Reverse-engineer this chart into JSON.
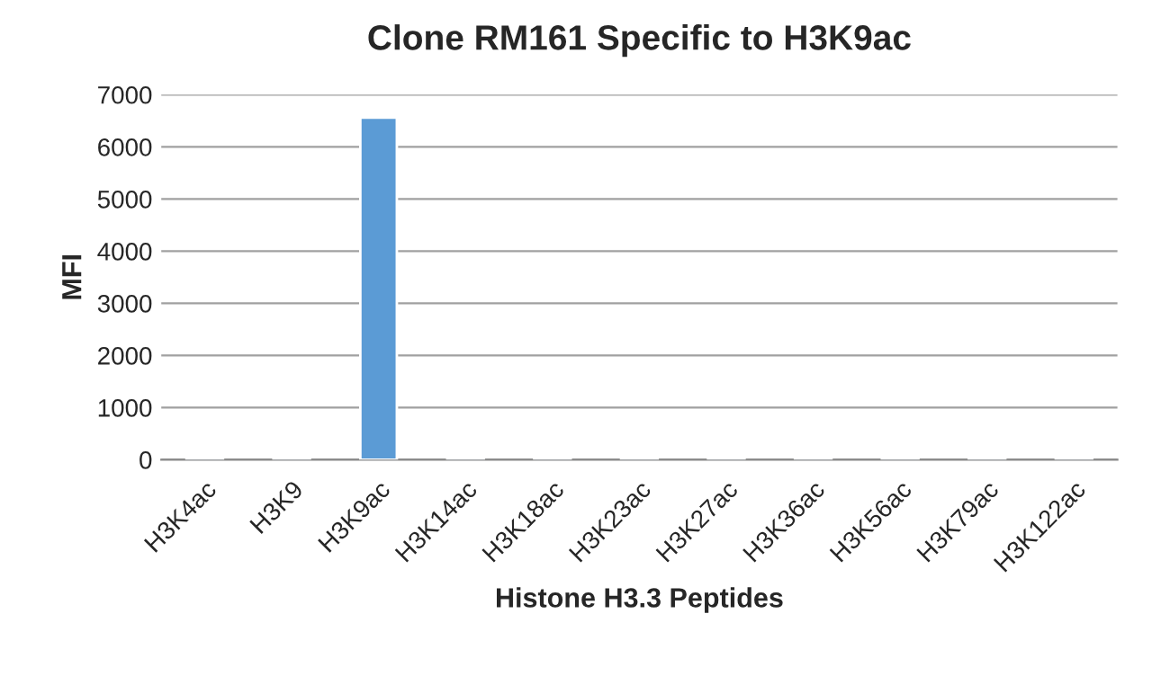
{
  "chart_data": {
    "type": "bar",
    "title": "Clone RM161 Specific to H3K9ac",
    "xlabel": "Histone H3.3 Peptides",
    "ylabel": "MFI",
    "categories": [
      "H3K4ac",
      "H3K9",
      "H3K9ac",
      "H3K14ac",
      "H3K18ac",
      "H3K23ac",
      "H3K27ac",
      "H3K36ac",
      "H3K56ac",
      "H3K79ac",
      "H3K122ac"
    ],
    "values": [
      40,
      40,
      6560,
      40,
      40,
      40,
      40,
      40,
      40,
      40,
      40
    ],
    "color": "#5b9bd5",
    "ylim": [
      0,
      7000
    ],
    "yticks": [
      0,
      1000,
      2000,
      3000,
      4000,
      5000,
      6000,
      7000
    ],
    "grid": "y",
    "legend": false
  }
}
